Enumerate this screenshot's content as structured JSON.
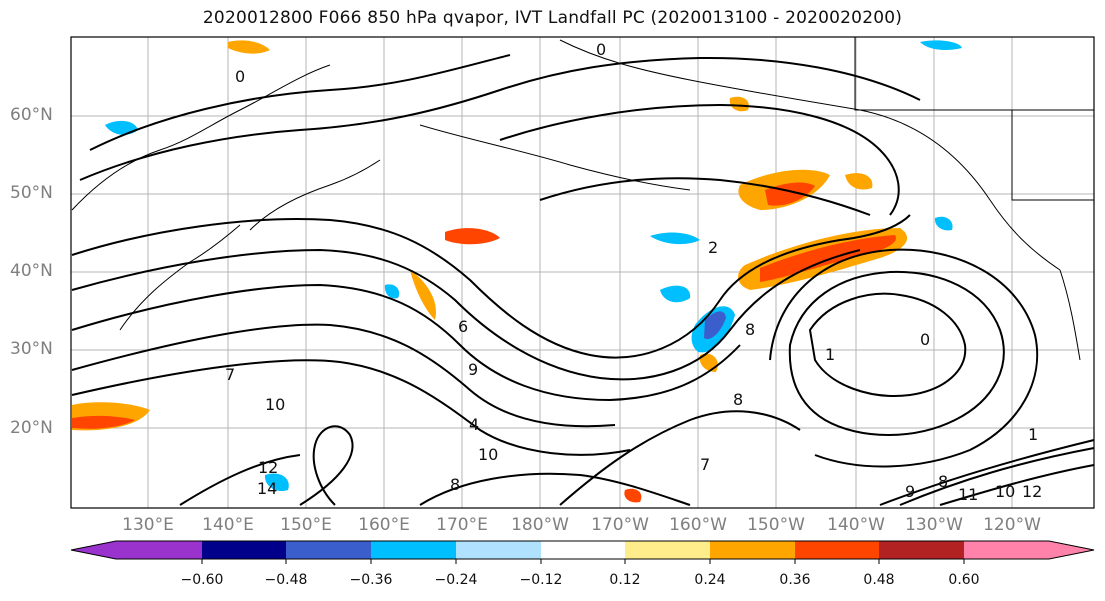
{
  "title": "2020012800 F066 850 hPa qvapor, IVT Landfall PC (2020013100 - 2020020200)",
  "map": {
    "lat_labels": [
      "60°N",
      "50°N",
      "40°N",
      "30°N",
      "20°N"
    ],
    "lon_labels": [
      "130°E",
      "140°E",
      "150°E",
      "160°E",
      "170°E",
      "180°W",
      "170°W",
      "160°W",
      "150°W",
      "140°W",
      "130°W",
      "120°W"
    ],
    "contour_labels": [
      "0",
      "0",
      "2",
      "6",
      "9",
      "10",
      "10",
      "12",
      "14",
      "8",
      "7",
      "8",
      "1",
      "0",
      "1",
      "11",
      "12",
      "10",
      "8",
      "9",
      "7",
      "4",
      "8"
    ]
  },
  "colorbar": {
    "colors": [
      "#9a32cd",
      "#00008b",
      "#3a5fcd",
      "#00bfff",
      "#b0e2ff",
      "#ffffff",
      "#ffec8b",
      "#ffa500",
      "#ff4500",
      "#b22222",
      "#ff82ab"
    ],
    "tick_labels": [
      "−0.60",
      "−0.48",
      "−0.36",
      "−0.24",
      "−0.12",
      "0.12",
      "0.24",
      "0.36",
      "0.48",
      "0.60"
    ]
  }
}
